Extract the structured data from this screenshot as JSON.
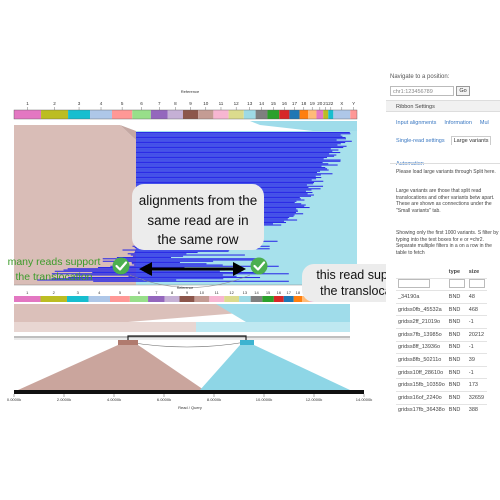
{
  "top_view": {
    "reference_label": "Reference",
    "chromosomes": [
      "1",
      "2",
      "3",
      "4",
      "5",
      "6",
      "7",
      "8",
      "9",
      "10",
      "11",
      "12",
      "13",
      "14",
      "15",
      "16",
      "17",
      "18",
      "19",
      "20",
      "21",
      "22",
      "X",
      "Y"
    ],
    "chromosome_colors": [
      "#e377c2",
      "#bcbd22",
      "#17becf",
      "#aec7e8",
      "#ff9896",
      "#98df8a",
      "#9467bd",
      "#c5b0d5",
      "#8c564b",
      "#c49c94",
      "#f7b6d2",
      "#dbdb8d",
      "#9edae5",
      "#7f7f7f",
      "#2ca02c",
      "#d62728",
      "#1f77b4",
      "#ff7f0e",
      "#ffbb78",
      "#e377c2",
      "#bcbd22",
      "#17becf",
      "#aec7e8",
      "#ff9896"
    ]
  },
  "mid_view": {
    "chromosomes": [
      "1",
      "2",
      "3",
      "4",
      "5",
      "6",
      "7",
      "8",
      "9",
      "10",
      "11",
      "12",
      "13",
      "14",
      "15",
      "16",
      "17",
      "18",
      "19",
      "20",
      "21",
      "22",
      "X",
      "Y"
    ],
    "read_axis": {
      "ticks": [
        "0.0000k",
        "2.0000k",
        "4.0000k",
        "6.0000k",
        "8.0000k",
        "10.0000k",
        "12.0000k",
        "14.0000k"
      ],
      "label": "Read / Query"
    }
  },
  "callouts": {
    "same_row": "alignments from the same read are in the same row",
    "many_reads": "many reads support the translocation",
    "this_read": "this read supports the translocation"
  },
  "panel": {
    "nav_label": "Navigate to a position:",
    "nav_placeholder": "chr1:123456789",
    "go_button": "Go",
    "ribbon_settings": "Ribbon Settings",
    "tabs_row1": [
      "Input alignments",
      "Information",
      "Mul"
    ],
    "tabs_row2": [
      "Single-read settings",
      "Large variants"
    ],
    "tabs_row3": [
      "Automation"
    ],
    "text1": "Please load large variants through Split here.",
    "text2": "Large variants are those that split read translocations and other variants betw apart. These are shown as connections under the \"Small variants\" tab.",
    "text3": "Showing only the first 1000 variants. S filter by typing into the text boxes for e or =chr2. Separate multiple filters in a on a row in the table to fetch",
    "table": {
      "headers": [
        "",
        "type",
        "size"
      ],
      "rows": [
        [
          "_34190a",
          "BND",
          "48"
        ],
        [
          "gridss0fb_45532a",
          "BND",
          "468"
        ],
        [
          "gridss2ff_21019o",
          "BND",
          "-1"
        ],
        [
          "gridss7fb_13985o",
          "BND",
          "20212"
        ],
        [
          "gridss8ff_13936o",
          "BND",
          "-1"
        ],
        [
          "gridss8fb_50211o",
          "BND",
          "39"
        ],
        [
          "gridss10ff_28610o",
          "BND",
          "-1"
        ],
        [
          "gridss15fb_10359o",
          "BND",
          "173"
        ],
        [
          "gridss16of_2240o",
          "BND",
          "32659"
        ],
        [
          "gridss17fb_36438o",
          "BND",
          "388"
        ]
      ]
    }
  },
  "colors": {
    "left_chrom": "#d7b9b3",
    "right_chrom": "#9fdcea",
    "read_blue": "#2323e8",
    "check_green": "#4caf50",
    "label_green": "#3c9b2a"
  }
}
